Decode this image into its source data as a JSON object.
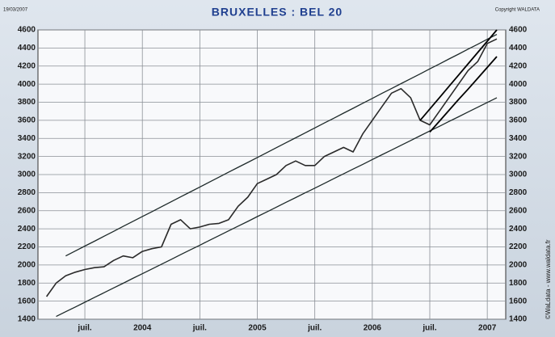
{
  "chart_data": {
    "type": "line",
    "title": "BRUXELLES : BEL 20",
    "date_note": "19/03/2007",
    "copyright": "Copyright WALDATA",
    "side_note": "©WaLdata - www.waldata.fr",
    "categories": [
      null,
      null,
      null,
      null,
      "juil.",
      null,
      null,
      null,
      null,
      null,
      "2004",
      null,
      null,
      null,
      null,
      null,
      "juil.",
      null,
      null,
      null,
      null,
      null,
      "2005",
      null,
      null,
      null,
      null,
      null,
      "juil.",
      null,
      null,
      null,
      null,
      null,
      "2006",
      null,
      null,
      null,
      null,
      null,
      "juil.",
      null,
      null,
      null,
      null,
      null,
      "2007",
      null
    ],
    "series": [
      {
        "color": "#2a2a2a",
        "width": 1.6,
        "values": [
          1650,
          1800,
          1880,
          1920,
          1950,
          1970,
          1980,
          2050,
          2100,
          2080,
          2150,
          2180,
          2200,
          2450,
          2500,
          2400,
          2420,
          2450,
          2460,
          2500,
          2650,
          2750,
          2900,
          2950,
          3000,
          3100,
          3150,
          3100,
          3100,
          3200,
          3250,
          3300,
          3250,
          3450,
          3600,
          3750,
          3900,
          3950,
          3850,
          3600,
          3550,
          3700,
          3850,
          4000,
          4150,
          4250,
          4450,
          4500
        ]
      },
      {
        "color": "#1e2a2a",
        "width": 1.3,
        "values": [
          null,
          null,
          2100,
          2154,
          2209,
          2263,
          2318,
          2372,
          2427,
          2481,
          2536,
          2590,
          2644,
          2699,
          2753,
          2808,
          2862,
          2917,
          2971,
          3026,
          3080,
          3134,
          3189,
          3243,
          3298,
          3352,
          3407,
          3461,
          3516,
          3570,
          3624,
          3679,
          3733,
          3788,
          3842,
          3897,
          3951,
          4006,
          4060,
          4114,
          4169,
          4223,
          4278,
          4332,
          4387,
          4441,
          4496,
          4550
        ]
      },
      {
        "color": "#1e2a2a",
        "width": 1.3,
        "values": [
          null,
          1430,
          1483,
          1535,
          1588,
          1640,
          1693,
          1746,
          1798,
          1851,
          1903,
          1956,
          2009,
          2061,
          2114,
          2167,
          2219,
          2272,
          2324,
          2377,
          2430,
          2482,
          2535,
          2587,
          2640,
          2693,
          2745,
          2798,
          2850,
          2903,
          2956,
          3008,
          3061,
          3113,
          3166,
          3219,
          3271,
          3324,
          3376,
          3429,
          3482,
          3534,
          3587,
          3639,
          3692,
          3745,
          3797,
          3850
        ]
      },
      {
        "color": "#000000",
        "width": 1.8,
        "values": [
          null,
          null,
          null,
          null,
          null,
          null,
          null,
          null,
          null,
          null,
          null,
          null,
          null,
          null,
          null,
          null,
          null,
          null,
          null,
          null,
          null,
          null,
          null,
          null,
          null,
          null,
          null,
          null,
          null,
          null,
          null,
          null,
          null,
          null,
          null,
          null,
          null,
          null,
          null,
          3600,
          3725,
          3850,
          3975,
          4100,
          4225,
          4350,
          4475,
          4600
        ]
      },
      {
        "color": "#000000",
        "width": 1.8,
        "values": [
          null,
          null,
          null,
          null,
          null,
          null,
          null,
          null,
          null,
          null,
          null,
          null,
          null,
          null,
          null,
          null,
          null,
          null,
          null,
          null,
          null,
          null,
          null,
          null,
          null,
          null,
          null,
          null,
          null,
          null,
          null,
          null,
          null,
          null,
          null,
          null,
          null,
          null,
          null,
          null,
          3470,
          3590,
          3710,
          3830,
          3945,
          4065,
          4185,
          4305
        ]
      }
    ],
    "ylim": [
      1400,
      4600
    ],
    "yticks": [
      1400,
      1600,
      1800,
      2000,
      2200,
      2400,
      2600,
      2800,
      3000,
      3200,
      3400,
      3600,
      3800,
      4000,
      4200,
      4400,
      4600
    ],
    "grid": true
  }
}
